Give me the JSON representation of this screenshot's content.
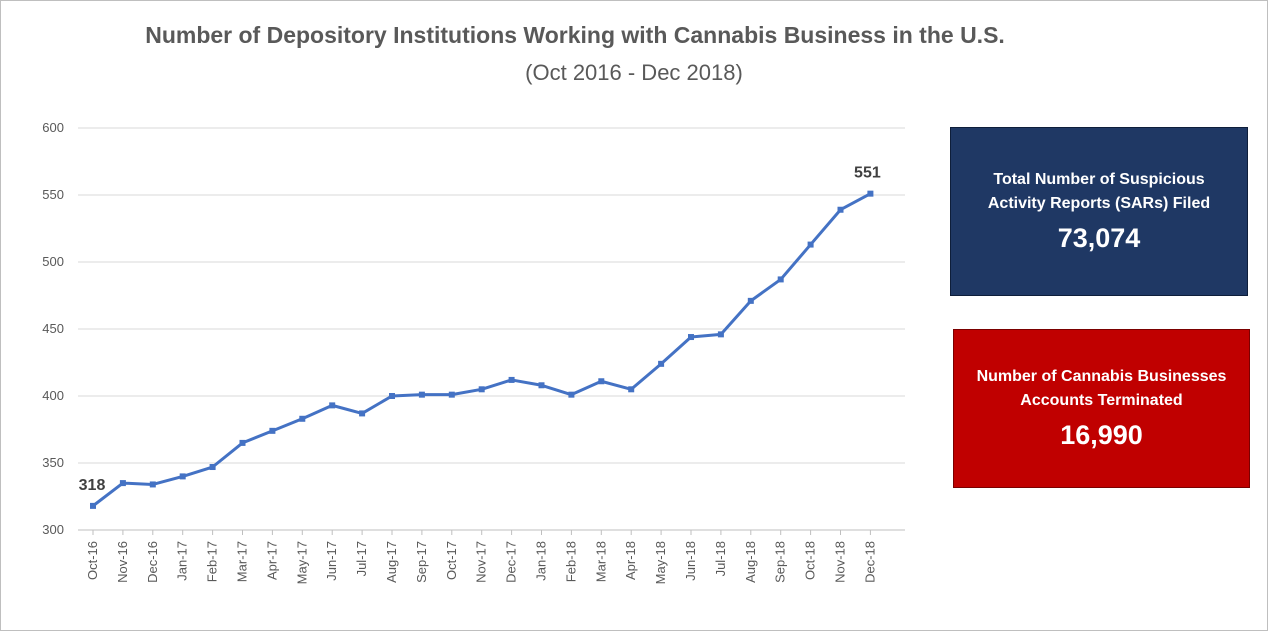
{
  "chart_data": {
    "type": "line",
    "title": "Number of Depository Institutions Working with Cannabis Business in the U.S.",
    "subtitle": "(Oct 2016 - Dec 2018)",
    "xlabel": "",
    "ylabel": "",
    "ylim": [
      300,
      600
    ],
    "yticks": [
      300,
      350,
      400,
      450,
      500,
      550,
      600
    ],
    "grid": true,
    "categories": [
      "Oct-16",
      "Nov-16",
      "Dec-16",
      "Jan-17",
      "Feb-17",
      "Mar-17",
      "Apr-17",
      "May-17",
      "Jun-17",
      "Jul-17",
      "Aug-17",
      "Sep-17",
      "Oct-17",
      "Nov-17",
      "Dec-17",
      "Jan-18",
      "Feb-18",
      "Mar-18",
      "Apr-18",
      "May-18",
      "Jun-18",
      "Jul-18",
      "Aug-18",
      "Sep-18",
      "Oct-18",
      "Nov-18",
      "Dec-18"
    ],
    "series": [
      {
        "values": [
          318,
          335,
          334,
          340,
          347,
          365,
          374,
          383,
          393,
          387,
          400,
          401,
          401,
          405,
          412,
          408,
          401,
          411,
          405,
          424,
          444,
          446,
          471,
          487,
          513,
          539,
          551
        ],
        "color": "#4472c4"
      }
    ],
    "annotations": [
      {
        "index": 0,
        "label": "318"
      },
      {
        "index": 26,
        "label": "551"
      }
    ]
  },
  "stat_boxes": {
    "sars": {
      "label": "Total  Number of Suspicious Activity Reports (SARs) Filed",
      "value": "73,074",
      "color": "#1f3864"
    },
    "terminated": {
      "label": "Number of Cannabis Businesses Accounts Terminated",
      "value": "16,990",
      "color": "#c00000"
    }
  }
}
